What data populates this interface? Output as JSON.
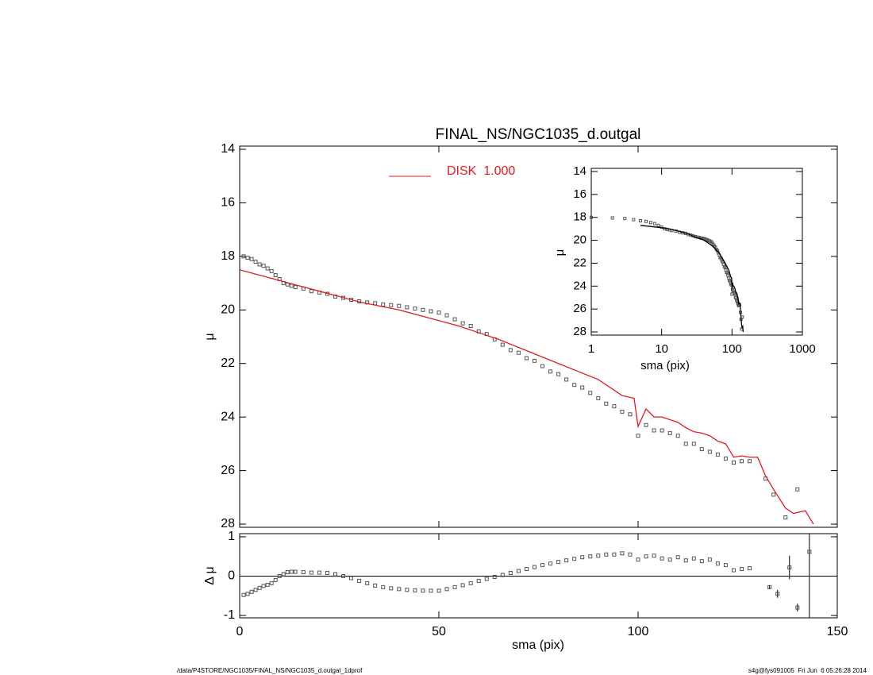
{
  "chart_data": [
    {
      "type": "scatter",
      "title": "FINAL_NS/NGC1035_d.outgal",
      "ylabel": "μ",
      "xlim": [
        0,
        150
      ],
      "xticks": [
        0,
        50,
        100,
        150
      ],
      "ylim": [
        14,
        28
      ],
      "yticks": [
        14,
        16,
        18,
        20,
        22,
        24,
        26,
        28
      ],
      "legend": "top",
      "series": [
        {
          "marker": "square",
          "color": "#555555",
          "x": [
            1,
            2,
            3,
            4,
            5,
            6,
            7,
            8,
            9,
            10,
            11,
            12,
            13,
            14,
            16,
            18,
            20,
            22,
            24,
            26,
            28,
            30,
            32,
            34,
            36,
            38,
            40,
            42,
            44,
            46,
            48,
            50,
            52,
            54,
            56,
            58,
            60,
            62,
            64,
            66,
            68,
            70,
            72,
            74,
            76,
            78,
            80,
            82,
            84,
            86,
            88,
            90,
            92,
            94,
            96,
            98,
            100,
            102,
            104,
            106,
            108,
            110,
            112,
            114,
            116,
            118,
            120,
            122,
            124,
            126,
            128,
            132,
            134,
            137,
            140
          ],
          "values": [
            18.0,
            18.05,
            18.1,
            18.2,
            18.3,
            18.35,
            18.45,
            18.55,
            18.7,
            18.85,
            19.0,
            19.05,
            19.1,
            19.15,
            19.2,
            19.3,
            19.35,
            19.4,
            19.5,
            19.55,
            19.62,
            19.68,
            19.72,
            19.75,
            19.8,
            19.82,
            19.85,
            19.9,
            19.95,
            20.0,
            20.05,
            20.1,
            20.2,
            20.35,
            20.5,
            20.6,
            20.8,
            20.9,
            21.1,
            21.3,
            21.5,
            21.6,
            21.8,
            21.9,
            22.1,
            22.3,
            22.4,
            22.6,
            22.8,
            22.9,
            23.1,
            23.3,
            23.5,
            23.6,
            23.8,
            23.9,
            24.7,
            24.3,
            24.5,
            24.5,
            24.6,
            24.7,
            25.0,
            25.0,
            25.2,
            25.3,
            25.4,
            25.55,
            25.7,
            25.65,
            25.65,
            26.3,
            26.9,
            27.75,
            26.7
          ]
        },
        {
          "name": "DISK  1.000",
          "marker": "line",
          "color": "#e41a1c",
          "x": [
            0,
            5,
            10,
            15,
            20,
            25,
            30,
            35,
            40,
            45,
            50,
            55,
            60,
            65,
            70,
            75,
            80,
            85,
            90,
            93,
            96,
            99,
            100,
            102,
            104,
            106,
            108,
            110,
            112,
            114,
            116,
            118,
            120,
            122,
            124,
            126,
            128,
            130,
            132,
            134,
            137,
            139,
            142,
            144
          ],
          "values": [
            18.5,
            18.7,
            18.9,
            19.1,
            19.3,
            19.5,
            19.7,
            19.85,
            20.0,
            20.2,
            20.4,
            20.6,
            20.85,
            21.1,
            21.4,
            21.7,
            22.0,
            22.3,
            22.6,
            22.9,
            23.2,
            23.3,
            24.35,
            23.7,
            24.0,
            24.0,
            24.1,
            24.2,
            24.4,
            24.55,
            24.6,
            24.7,
            24.9,
            25.0,
            25.5,
            25.45,
            25.5,
            25.5,
            26.2,
            26.7,
            27.4,
            27.6,
            27.5,
            28.0
          ]
        }
      ]
    },
    {
      "type": "residual",
      "xlabel": "sma (pix)",
      "ylabel": "Δ μ",
      "xlim": [
        0,
        150
      ],
      "xticks": [
        0,
        50,
        100,
        150
      ],
      "ylim": [
        -1.06,
        1.08
      ],
      "yticks": [
        -1,
        0,
        1
      ],
      "zero_line": true,
      "series": [
        {
          "marker": "square",
          "color": "#555555",
          "x": [
            1,
            2,
            3,
            4,
            5,
            6,
            7,
            8,
            9,
            10,
            11,
            12,
            13,
            14,
            16,
            18,
            20,
            22,
            24,
            26,
            28,
            30,
            32,
            34,
            36,
            38,
            40,
            42,
            44,
            46,
            48,
            50,
            52,
            54,
            56,
            58,
            60,
            62,
            64,
            66,
            68,
            70,
            72,
            74,
            76,
            78,
            80,
            82,
            84,
            86,
            88,
            90,
            92,
            94,
            96,
            98,
            100,
            102,
            104,
            106,
            108,
            110,
            112,
            114,
            116,
            118,
            120,
            122,
            124,
            126,
            128
          ],
          "values": [
            -0.48,
            -0.45,
            -0.4,
            -0.35,
            -0.3,
            -0.25,
            -0.22,
            -0.18,
            -0.1,
            0.0,
            0.05,
            0.1,
            0.11,
            0.11,
            0.1,
            0.09,
            0.09,
            0.08,
            0.05,
            0.0,
            -0.05,
            -0.12,
            -0.18,
            -0.24,
            -0.28,
            -0.31,
            -0.33,
            -0.35,
            -0.36,
            -0.37,
            -0.37,
            -0.37,
            -0.33,
            -0.28,
            -0.23,
            -0.18,
            -0.12,
            -0.07,
            -0.02,
            0.03,
            0.08,
            0.13,
            0.18,
            0.23,
            0.28,
            0.32,
            0.36,
            0.4,
            0.44,
            0.48,
            0.5,
            0.52,
            0.55,
            0.55,
            0.58,
            0.55,
            0.42,
            0.5,
            0.52,
            0.45,
            0.42,
            0.48,
            0.4,
            0.45,
            0.38,
            0.42,
            0.32,
            0.28,
            0.15,
            0.18,
            0.2
          ]
        },
        {
          "marker": "errorbar",
          "color": "#555555",
          "x": [
            133,
            135,
            138,
            140,
            143
          ],
          "values": [
            -0.28,
            -0.45,
            0.22,
            -0.8,
            0.62
          ],
          "errors": [
            0.05,
            0.1,
            0.3,
            0.1,
            2.0
          ]
        }
      ]
    },
    {
      "type": "inset",
      "xlabel": "sma (pix)",
      "ylabel": "μ",
      "log_x": true,
      "line_color": "#000000",
      "xlim": [
        1,
        1000
      ],
      "xticks": [
        1,
        10,
        100,
        1000
      ],
      "ylim": [
        14,
        28
      ],
      "yticks": [
        14,
        16,
        18,
        20,
        22,
        24,
        26,
        28
      ]
    }
  ],
  "footer": {
    "left": "/data/P4STORE/NGC1035/FINAL_NS/NGC1035_d.outgal_1dprof",
    "right": "s4g@fys091005  Fri Jun  6 05:26:28 2014"
  }
}
